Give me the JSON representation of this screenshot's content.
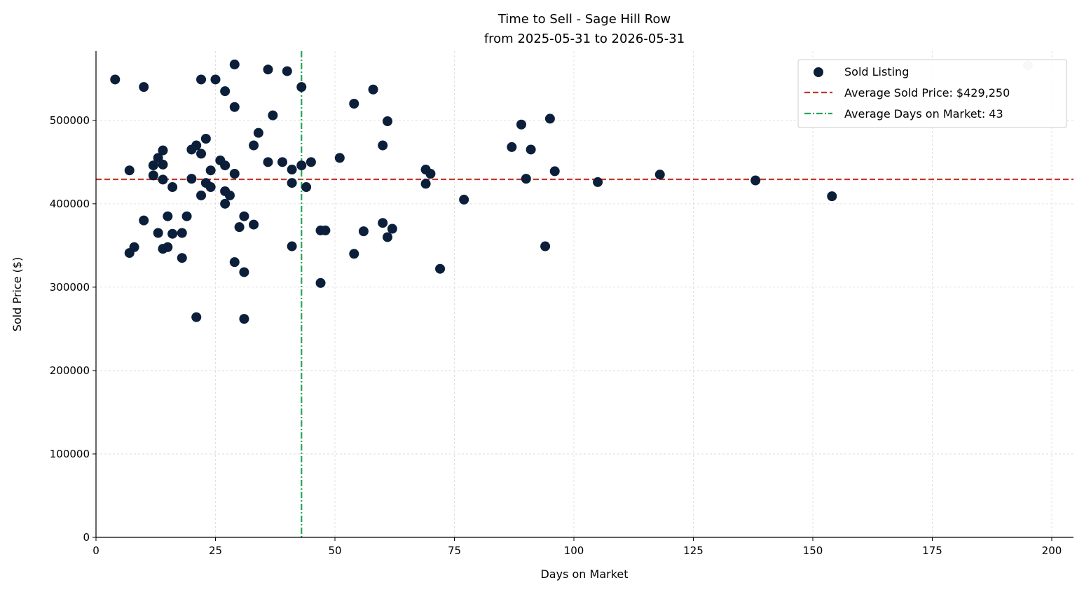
{
  "chart_data": {
    "type": "scatter",
    "title": "Time to Sell - Sage Hill Row",
    "subtitle": "from 2025-05-31 to 2026-05-31",
    "xlabel": "Days on Market",
    "ylabel": "Sold Price ($)",
    "xlim": [
      0,
      204
    ],
    "ylim": [
      0,
      583000
    ],
    "x_ticks": [
      0,
      25,
      50,
      75,
      100,
      125,
      150,
      175,
      200
    ],
    "y_ticks": [
      0,
      100000,
      200000,
      300000,
      400000,
      500000
    ],
    "grid": true,
    "legend_position": "top-right",
    "colors": {
      "points": "#0b1f3a",
      "outlier_point": "#c8ced6",
      "avg_price_line": "#c0392b",
      "avg_days_line": "#27a55a",
      "grid": "#d9d9d9"
    },
    "legend": [
      {
        "label": "Sold Listing",
        "kind": "marker"
      },
      {
        "label": "Average Sold Price: $429,250",
        "kind": "dashed"
      },
      {
        "label": "Average Days on Market: 43",
        "kind": "dashdot"
      }
    ],
    "avg_price": 429250,
    "avg_days": 43,
    "series": [
      {
        "name": "Sold Listing",
        "points": [
          [
            4,
            549000
          ],
          [
            7,
            440000
          ],
          [
            7,
            341000
          ],
          [
            8,
            348000
          ],
          [
            10,
            540000
          ],
          [
            10,
            380000
          ],
          [
            12,
            446000
          ],
          [
            12,
            434000
          ],
          [
            13,
            455000
          ],
          [
            13,
            365000
          ],
          [
            14,
            464000
          ],
          [
            14,
            447000
          ],
          [
            14,
            429000
          ],
          [
            14,
            346000
          ],
          [
            15,
            385000
          ],
          [
            15,
            348000
          ],
          [
            16,
            420000
          ],
          [
            16,
            364000
          ],
          [
            18,
            365000
          ],
          [
            18,
            335000
          ],
          [
            19,
            385000
          ],
          [
            20,
            465000
          ],
          [
            20,
            430000
          ],
          [
            21,
            470000
          ],
          [
            21,
            264000
          ],
          [
            22,
            549000
          ],
          [
            22,
            460000
          ],
          [
            22,
            410000
          ],
          [
            23,
            478000
          ],
          [
            23,
            425000
          ],
          [
            24,
            440000
          ],
          [
            24,
            420000
          ],
          [
            25,
            549000
          ],
          [
            26,
            452000
          ],
          [
            27,
            535000
          ],
          [
            27,
            446000
          ],
          [
            27,
            415000
          ],
          [
            27,
            400000
          ],
          [
            28,
            410000
          ],
          [
            29,
            567000
          ],
          [
            29,
            516000
          ],
          [
            29,
            436000
          ],
          [
            29,
            330000
          ],
          [
            30,
            372000
          ],
          [
            31,
            385000
          ],
          [
            31,
            318000
          ],
          [
            31,
            262000
          ],
          [
            33,
            470000
          ],
          [
            33,
            375000
          ],
          [
            34,
            485000
          ],
          [
            36,
            561000
          ],
          [
            36,
            450000
          ],
          [
            37,
            506000
          ],
          [
            39,
            450000
          ],
          [
            40,
            559000
          ],
          [
            41,
            441000
          ],
          [
            41,
            425000
          ],
          [
            41,
            349000
          ],
          [
            43,
            540000
          ],
          [
            43,
            446000
          ],
          [
            44,
            420000
          ],
          [
            45,
            450000
          ],
          [
            47,
            368000
          ],
          [
            47,
            305000
          ],
          [
            48,
            368000
          ],
          [
            51,
            455000
          ],
          [
            54,
            520000
          ],
          [
            54,
            340000
          ],
          [
            56,
            367000
          ],
          [
            58,
            537000
          ],
          [
            60,
            470000
          ],
          [
            60,
            377000
          ],
          [
            61,
            499000
          ],
          [
            61,
            360000
          ],
          [
            62,
            370000
          ],
          [
            69,
            441000
          ],
          [
            69,
            424000
          ],
          [
            70,
            436000
          ],
          [
            72,
            322000
          ],
          [
            77,
            405000
          ],
          [
            87,
            468000
          ],
          [
            89,
            495000
          ],
          [
            90,
            430000
          ],
          [
            91,
            465000
          ],
          [
            94,
            349000
          ],
          [
            95,
            502000
          ],
          [
            96,
            439000
          ],
          [
            105,
            426000
          ],
          [
            118,
            435000
          ],
          [
            138,
            428000
          ],
          [
            154,
            409000
          ]
        ]
      },
      {
        "name": "",
        "points": [
          [
            195,
            566000
          ]
        ]
      }
    ]
  }
}
